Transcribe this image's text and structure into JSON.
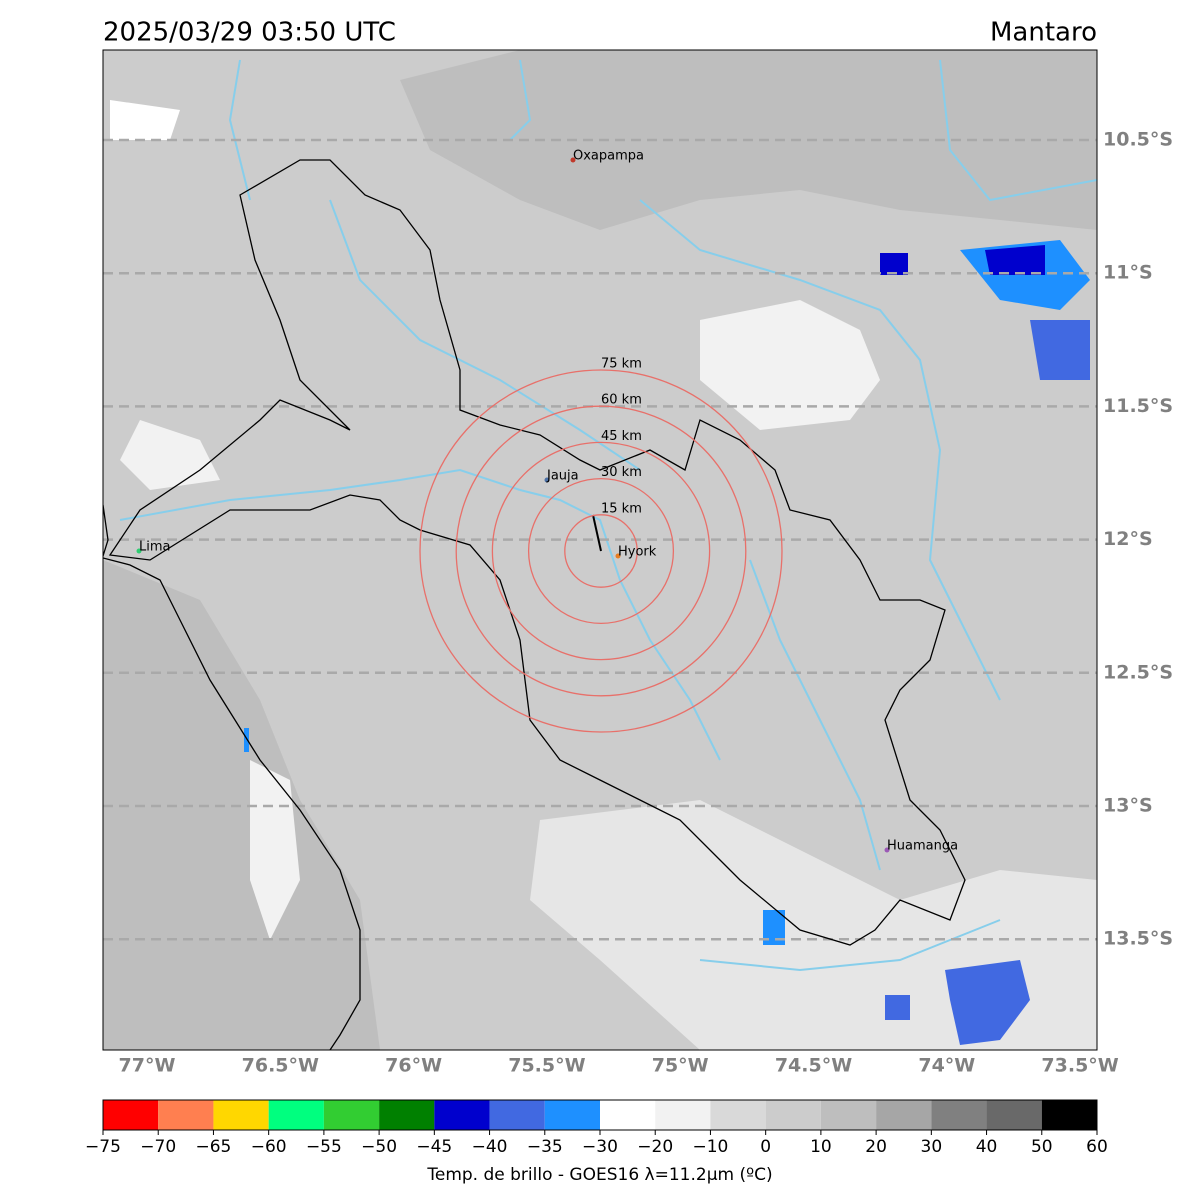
{
  "header": {
    "datetime": "2025/03/29 03:50 UTC",
    "region": "Mantaro"
  },
  "map": {
    "lat_labels": [
      "10.5°S",
      "11°S",
      "11.5°S",
      "12°S",
      "12.5°S",
      "13°S",
      "13.5°S"
    ],
    "lon_labels": [
      "77°W",
      "76.5°W",
      "76°W",
      "75.5°W",
      "75°W",
      "74.5°W",
      "74°W",
      "73.5°W"
    ],
    "cities": [
      {
        "name": "Oxapampa"
      },
      {
        "name": "Jauja"
      },
      {
        "name": "Hyork"
      },
      {
        "name": "Lima"
      },
      {
        "name": "Huamanga"
      }
    ],
    "rings": [
      "15 km",
      "30 km",
      "45 km",
      "60 km",
      "75 km"
    ]
  },
  "colorbar": {
    "ticks": [
      "−75",
      "−70",
      "−65",
      "−60",
      "−55",
      "−50",
      "−45",
      "−40",
      "−35",
      "−30",
      "−20",
      "−10",
      "0",
      "10",
      "20",
      "30",
      "40",
      "50",
      "60"
    ],
    "colors": [
      "#ff0000",
      "#ff7f50",
      "#ffd700",
      "#00ff7f",
      "#32cd32",
      "#008000",
      "#0000cd",
      "#4169e1",
      "#1e90ff",
      "#ffffff",
      "#f2f2f2",
      "#d9d9d9",
      "#cccccc",
      "#bebebe",
      "#a6a6a6",
      "#808080",
      "#696969",
      "#000000"
    ],
    "label": "Temp. de brillo - GOES16 λ=11.2μm (ºC)"
  }
}
